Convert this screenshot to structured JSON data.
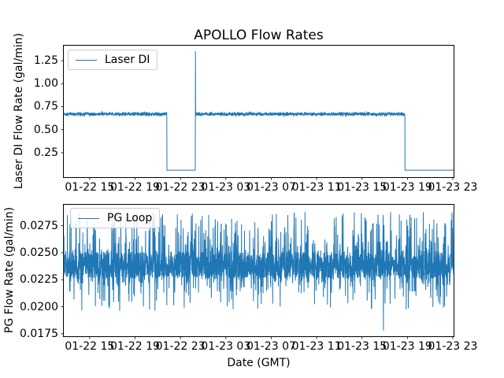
{
  "figure": {
    "background": "#ffffff",
    "axes_frame_color": "#000000",
    "text_color": "#000000",
    "series_color": "#1f77b4",
    "legend_border_color": "#cccccc"
  },
  "chart_data": [
    {
      "type": "line",
      "title": "APOLLO Flow Rates",
      "xlabel": "",
      "ylabel": "Laser DI Flow Rate (gal/min)",
      "legend": [
        "Laser DI"
      ],
      "legend_position": "upper left",
      "line_color": "#1f77b4",
      "grid": false,
      "xlim_hours": [
        12.72,
        47.07
      ],
      "ylim": [
        -0.016,
        1.413
      ],
      "xtick_hours": [
        15,
        19,
        23,
        27,
        31,
        35,
        39,
        43,
        47
      ],
      "xtick_labels": [
        "01-22 15",
        "01-22 19",
        "01-22 23",
        "01-23 03",
        "01-23 07",
        "01-23 11",
        "01-23 15",
        "01-23 19",
        "01-23 23"
      ],
      "ytick_values": [
        0.25,
        0.5,
        0.75,
        1.0,
        1.25
      ],
      "ytick_labels": [
        "0.25",
        "0.50",
        "0.75",
        "1.00",
        "1.25"
      ],
      "series_model": {
        "kind": "baseline-with-dropouts",
        "samples": 2600,
        "baseline": 0.67,
        "noise_max": 0.025,
        "dropout": {
          "start_hour": 21.8,
          "end_hour": 24.32,
          "value": 0.06
        },
        "recovery_spike": {
          "hour": 24.32,
          "value": 1.353
        },
        "final_dropout": {
          "start_hour": 42.78,
          "value": 0.06
        }
      }
    },
    {
      "type": "line",
      "title": "",
      "xlabel": "Date (GMT)",
      "ylabel": "PG Flow Rate (gal/min)",
      "legend": [
        "PG Loop"
      ],
      "legend_position": "upper left",
      "line_color": "#1f77b4",
      "grid": false,
      "xlim_hours": [
        12.72,
        47.07
      ],
      "ylim": [
        0.01727,
        0.02944
      ],
      "xtick_hours": [
        15,
        19,
        23,
        27,
        31,
        35,
        39,
        43,
        47
      ],
      "xtick_labels": [
        "01-22 15",
        "01-22 19",
        "01-22 23",
        "01-23 03",
        "01-23 07",
        "01-23 11",
        "01-23 15",
        "01-23 19",
        "01-23 23"
      ],
      "ytick_values": [
        0.0175,
        0.02,
        0.0225,
        0.025,
        0.0275
      ],
      "ytick_labels": [
        "0.0175",
        "0.0200",
        "0.0225",
        "0.0250",
        "0.0275"
      ],
      "series_model": {
        "kind": "random-band",
        "samples": 2600,
        "band": [
          0.0227,
          0.025
        ],
        "band_prob": 0.7,
        "up_spike_prob": 0.16,
        "up_spike_max": 0.0288,
        "down_spike_min": 0.0196,
        "extreme_min": {
          "value": 0.0178,
          "x_fraction": 0.82
        }
      }
    }
  ]
}
